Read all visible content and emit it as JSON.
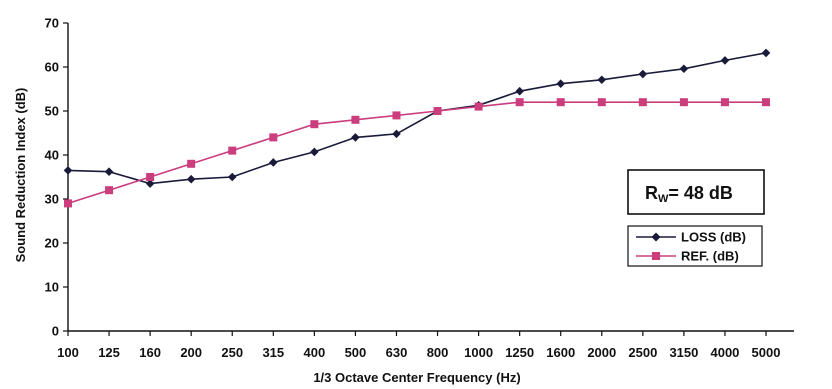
{
  "chart_data": {
    "type": "line",
    "categories": [
      "100",
      "125",
      "160",
      "200",
      "250",
      "315",
      "400",
      "500",
      "630",
      "800",
      "1000",
      "1250",
      "1600",
      "2000",
      "2500",
      "3150",
      "4000",
      "5000"
    ],
    "series": [
      {
        "name": "LOSS (dB)",
        "color": "#1a1a3a",
        "marker": "diamond",
        "values": [
          36.5,
          36.2,
          33.5,
          34.5,
          35.0,
          38.3,
          40.7,
          44.0,
          44.8,
          50.0,
          51.3,
          54.5,
          56.2,
          57.1,
          58.4,
          59.6,
          61.5,
          63.2
        ]
      },
      {
        "name": "REF. (dB)",
        "color": "#cc3d7e",
        "marker": "square",
        "values": [
          29,
          32,
          35,
          38,
          41,
          44,
          47,
          48,
          49,
          50,
          51,
          52,
          52,
          52,
          52,
          52,
          52,
          52
        ]
      }
    ],
    "xlabel": "1/3 Octave Center Frequency (Hz)",
    "ylabel": "Sound Reduction Index (dB)",
    "ylim": [
      0,
      70
    ],
    "yticks": [
      0,
      10,
      20,
      30,
      40,
      50,
      60,
      70
    ],
    "grid": false,
    "legend_position": "right",
    "annotation": {
      "main": "R",
      "subscript": "W",
      "rest": "= 48 dB"
    }
  }
}
